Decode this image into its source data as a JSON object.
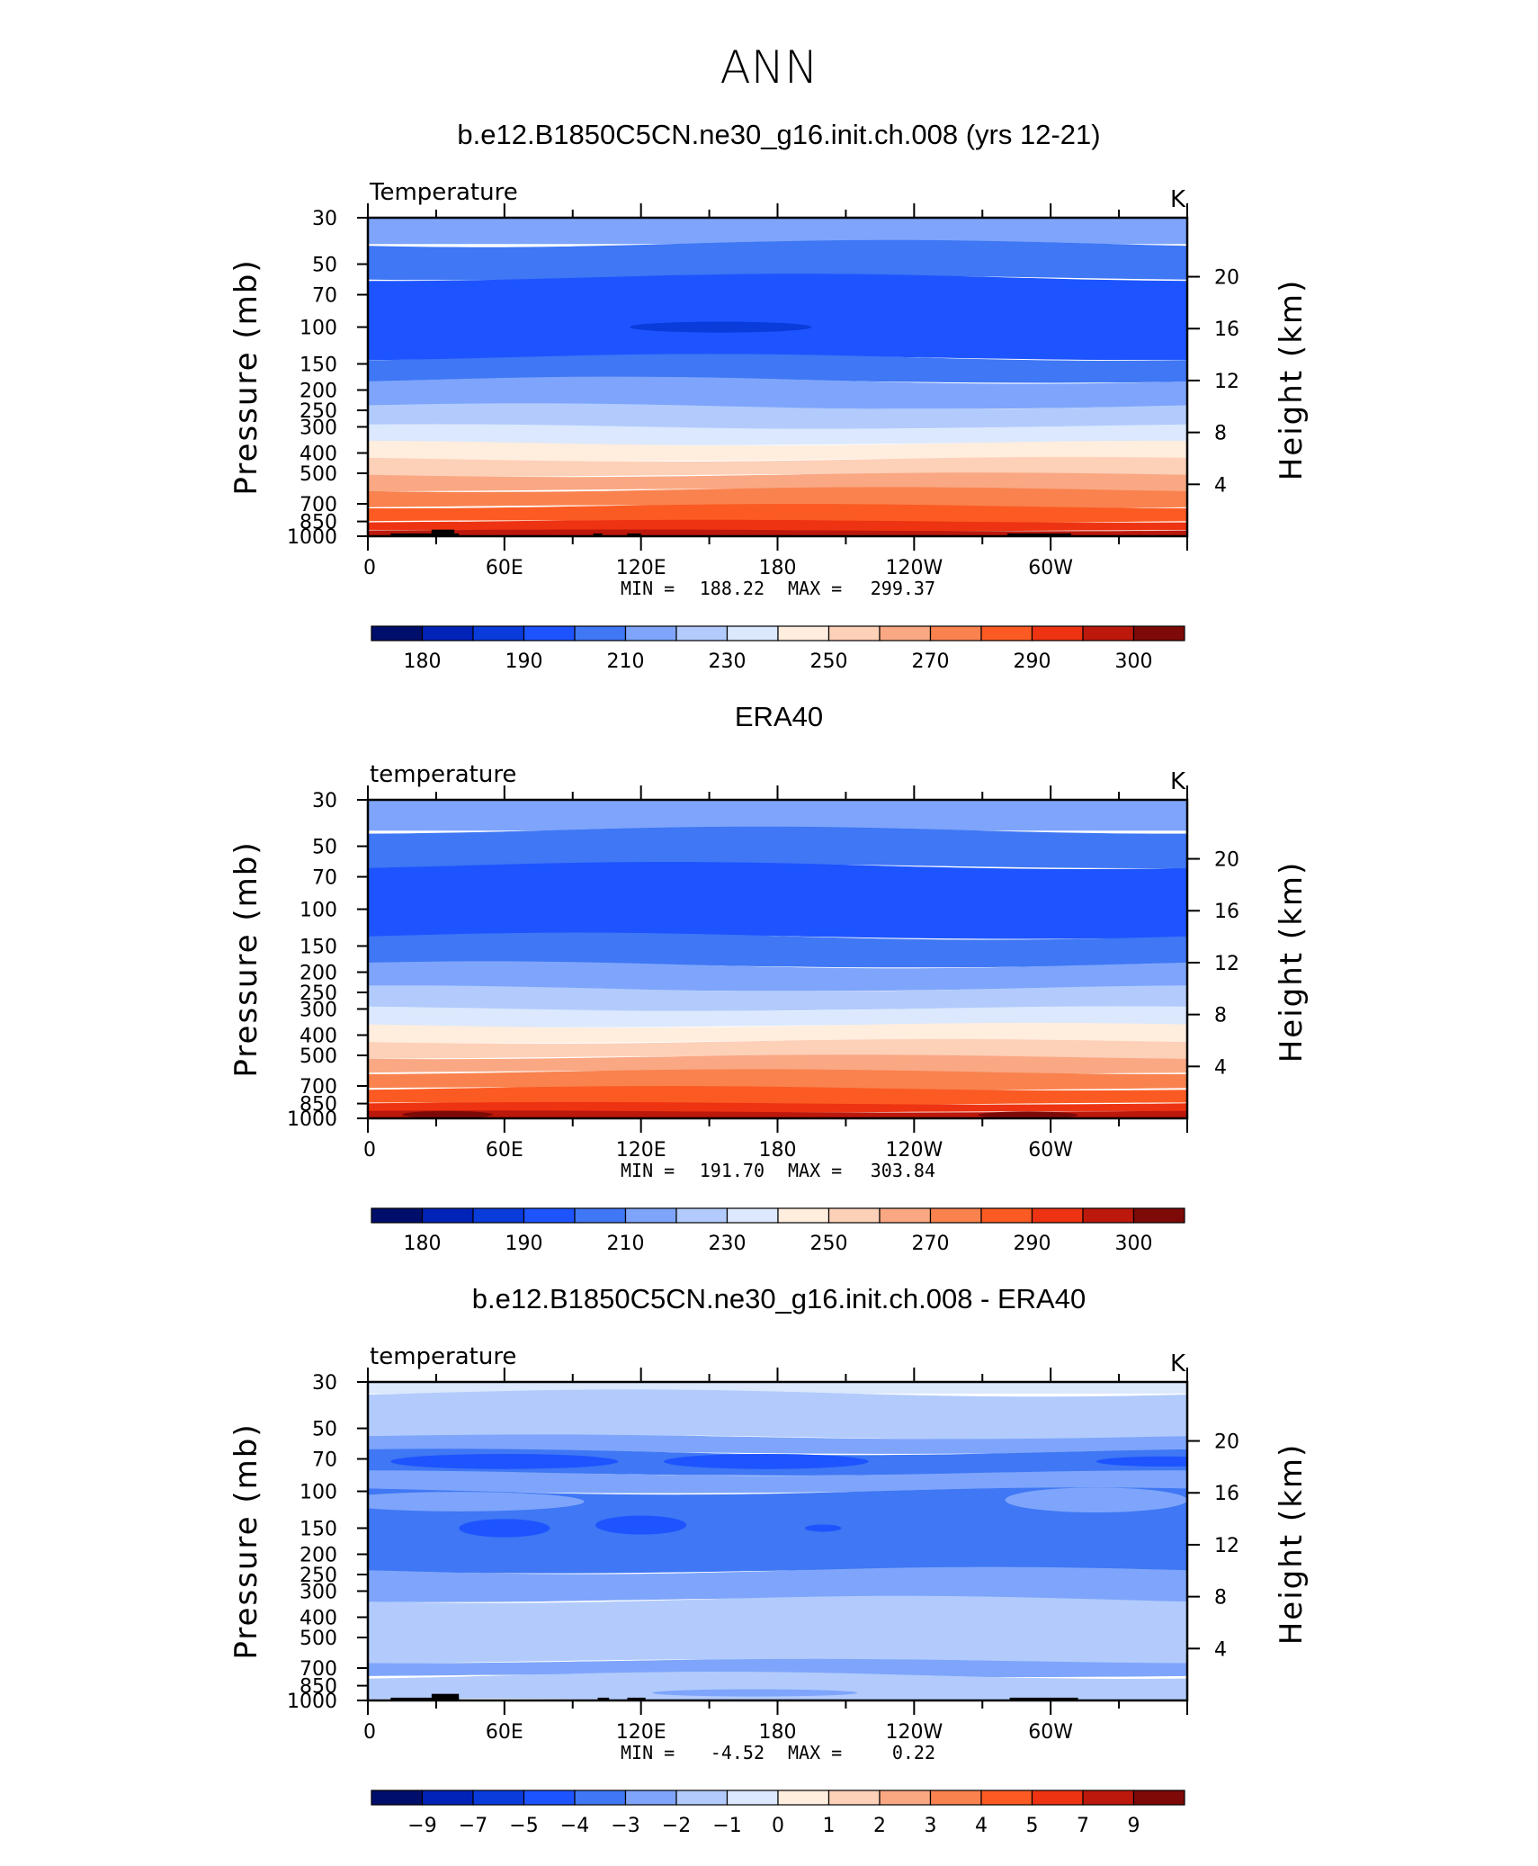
{
  "figure_title": "ANN",
  "colors": {
    "levels": [
      "#000e6b",
      "#0223b8",
      "#0a3bdb",
      "#1d54ff",
      "#3f77f4",
      "#7ea5fb",
      "#b2cbfc",
      "#dbe8fd",
      "#ffedde",
      "#fdd0b8",
      "#f9a883",
      "#f9824f",
      "#fb5b23",
      "#ed3312",
      "#bc180c",
      "#7d0a07"
    ],
    "terrain": "#000000"
  },
  "chart_data": [
    {
      "type": "contour",
      "title": "b.e12.B1850C5CN.ne30_g16.init.ch.008 (yrs 12-21)",
      "left_label": "Temperature",
      "units": "K",
      "ylabel": "Pressure (mb)",
      "ylabel2": "Height (km)",
      "x_ticks": [
        "0",
        "60E",
        "120E",
        "180",
        "120W",
        "60W"
      ],
      "y_ticks": [
        "30",
        "50",
        "70",
        "100",
        "150",
        "200",
        "250",
        "300",
        "400",
        "500",
        "700",
        "850",
        "1000"
      ],
      "height_ticks": [
        "20",
        "16",
        "12",
        "8",
        "4"
      ],
      "min": "188.22",
      "max": "299.37",
      "colorbar_labels": [
        "180",
        "190",
        "210",
        "230",
        "250",
        "270",
        "290",
        "300"
      ],
      "bands": [
        {
          "p_top": 30,
          "p_bot": 40,
          "level": 5
        },
        {
          "p_top": 40,
          "p_bot": 58,
          "level": 4
        },
        {
          "p_top": 58,
          "p_bot": 140,
          "level": 3
        },
        {
          "p_top": 140,
          "p_bot": 180,
          "level": 4
        },
        {
          "p_top": 180,
          "p_bot": 240,
          "level": 5
        },
        {
          "p_top": 240,
          "p_bot": 300,
          "level": 6
        },
        {
          "p_top": 300,
          "p_bot": 360,
          "level": 7
        },
        {
          "p_top": 360,
          "p_bot": 430,
          "level": 8
        },
        {
          "p_top": 430,
          "p_bot": 510,
          "level": 9
        },
        {
          "p_top": 510,
          "p_bot": 600,
          "level": 10
        },
        {
          "p_top": 600,
          "p_bot": 720,
          "level": 11
        },
        {
          "p_top": 720,
          "p_bot": 850,
          "level": 12
        },
        {
          "p_top": 850,
          "p_bot": 940,
          "level": 13
        },
        {
          "p_top": 940,
          "p_bot": 1000,
          "level": 14
        }
      ],
      "blobs": [
        {
          "lon": 155,
          "p": 100,
          "lon_half": 40,
          "p_half": 6,
          "level": 2
        }
      ],
      "terrain": [
        {
          "lon0": 10,
          "lon1": 40,
          "p_top": 970
        },
        {
          "lon0": 28,
          "lon1": 38,
          "p_top": 930
        },
        {
          "lon0": 99,
          "lon1": 103,
          "p_top": 970
        },
        {
          "lon0": 114,
          "lon1": 120,
          "p_top": 970
        },
        {
          "lon0": 281,
          "lon1": 309,
          "p_top": 970
        }
      ]
    },
    {
      "type": "contour",
      "title": "ERA40",
      "left_label": "temperature",
      "units": "K",
      "ylabel": "Pressure (mb)",
      "ylabel2": "Height (km)",
      "x_ticks": [
        "0",
        "60E",
        "120E",
        "180",
        "120W",
        "60W"
      ],
      "y_ticks": [
        "30",
        "50",
        "70",
        "100",
        "150",
        "200",
        "250",
        "300",
        "400",
        "500",
        "700",
        "850",
        "1000"
      ],
      "height_ticks": [
        "20",
        "16",
        "12",
        "8",
        "4"
      ],
      "min": "191.70",
      "max": "303.84",
      "colorbar_labels": [
        "180",
        "190",
        "210",
        "230",
        "250",
        "270",
        "290",
        "300"
      ],
      "bands": [
        {
          "p_top": 30,
          "p_bot": 42,
          "level": 5
        },
        {
          "p_top": 42,
          "p_bot": 62,
          "level": 4
        },
        {
          "p_top": 62,
          "p_bot": 135,
          "level": 3
        },
        {
          "p_top": 135,
          "p_bot": 185,
          "level": 4
        },
        {
          "p_top": 185,
          "p_bot": 240,
          "level": 5
        },
        {
          "p_top": 240,
          "p_bot": 300,
          "level": 6
        },
        {
          "p_top": 300,
          "p_bot": 360,
          "level": 7
        },
        {
          "p_top": 360,
          "p_bot": 430,
          "level": 8
        },
        {
          "p_top": 430,
          "p_bot": 510,
          "level": 9
        },
        {
          "p_top": 510,
          "p_bot": 600,
          "level": 10
        },
        {
          "p_top": 600,
          "p_bot": 720,
          "level": 11
        },
        {
          "p_top": 720,
          "p_bot": 850,
          "level": 12
        },
        {
          "p_top": 850,
          "p_bot": 930,
          "level": 13
        },
        {
          "p_top": 930,
          "p_bot": 1000,
          "level": 14
        }
      ],
      "blobs": [
        {
          "lon": 35,
          "p": 960,
          "lon_half": 20,
          "p_half": 30,
          "level": 15
        },
        {
          "lon": 290,
          "p": 965,
          "lon_half": 22,
          "p_half": 25,
          "level": 15
        }
      ],
      "terrain": []
    },
    {
      "type": "contour",
      "title": "b.e12.B1850C5CN.ne30_g16.init.ch.008 - ERA40",
      "left_label": "temperature",
      "units": "K",
      "ylabel": "Pressure (mb)",
      "ylabel2": "Height (km)",
      "x_ticks": [
        "0",
        "60E",
        "120E",
        "180",
        "120W",
        "60W"
      ],
      "y_ticks": [
        "30",
        "50",
        "70",
        "100",
        "150",
        "200",
        "250",
        "300",
        "400",
        "500",
        "700",
        "850",
        "1000"
      ],
      "height_ticks": [
        "20",
        "16",
        "12",
        "8",
        "4"
      ],
      "min": "-4.52",
      "max": "0.22",
      "colorbar_labels": [
        "−9",
        "−7",
        "−5",
        "−4",
        "−3",
        "−2",
        "−1",
        "0",
        "1",
        "2",
        "3",
        "4",
        "5",
        "7",
        "9"
      ],
      "bands": [
        {
          "p_top": 30,
          "p_bot": 34,
          "level": 7
        },
        {
          "p_top": 34,
          "p_bot": 55,
          "level": 6
        },
        {
          "p_top": 55,
          "p_bot": 65,
          "level": 5
        },
        {
          "p_top": 65,
          "p_bot": 82,
          "level": 4
        },
        {
          "p_top": 82,
          "p_bot": 100,
          "level": 5
        },
        {
          "p_top": 100,
          "p_bot": 240,
          "level": 4
        },
        {
          "p_top": 240,
          "p_bot": 330,
          "level": 5
        },
        {
          "p_top": 330,
          "p_bot": 650,
          "level": 6
        },
        {
          "p_top": 650,
          "p_bot": 760,
          "level": 5
        },
        {
          "p_top": 760,
          "p_bot": 1000,
          "level": 6
        }
      ],
      "blobs": [
        {
          "lon": 60,
          "p": 72,
          "lon_half": 50,
          "p_half": 6,
          "level": 3
        },
        {
          "lon": 175,
          "p": 72,
          "lon_half": 45,
          "p_half": 6,
          "level": 3
        },
        {
          "lon": 350,
          "p": 72,
          "lon_half": 30,
          "p_half": 4,
          "level": 3
        },
        {
          "lon": 60,
          "p": 150,
          "lon_half": 20,
          "p_half": 15,
          "level": 3
        },
        {
          "lon": 120,
          "p": 145,
          "lon_half": 20,
          "p_half": 15,
          "level": 3
        },
        {
          "lon": 200,
          "p": 150,
          "lon_half": 8,
          "p_half": 5,
          "level": 3
        },
        {
          "lon": 40,
          "p": 112,
          "lon_half": 55,
          "p_half": 12,
          "level": 5
        },
        {
          "lon": 320,
          "p": 110,
          "lon_half": 40,
          "p_half": 15,
          "level": 5
        },
        {
          "lon": 170,
          "p": 920,
          "lon_half": 45,
          "p_half": 25,
          "level": 5
        }
      ],
      "terrain": [
        {
          "lon0": 10,
          "lon1": 40,
          "p_top": 970
        },
        {
          "lon0": 28,
          "lon1": 40,
          "p_top": 930
        },
        {
          "lon0": 101,
          "lon1": 106,
          "p_top": 970
        },
        {
          "lon0": 114,
          "lon1": 122,
          "p_top": 970
        },
        {
          "lon0": 282,
          "lon1": 312,
          "p_top": 970
        }
      ]
    }
  ]
}
